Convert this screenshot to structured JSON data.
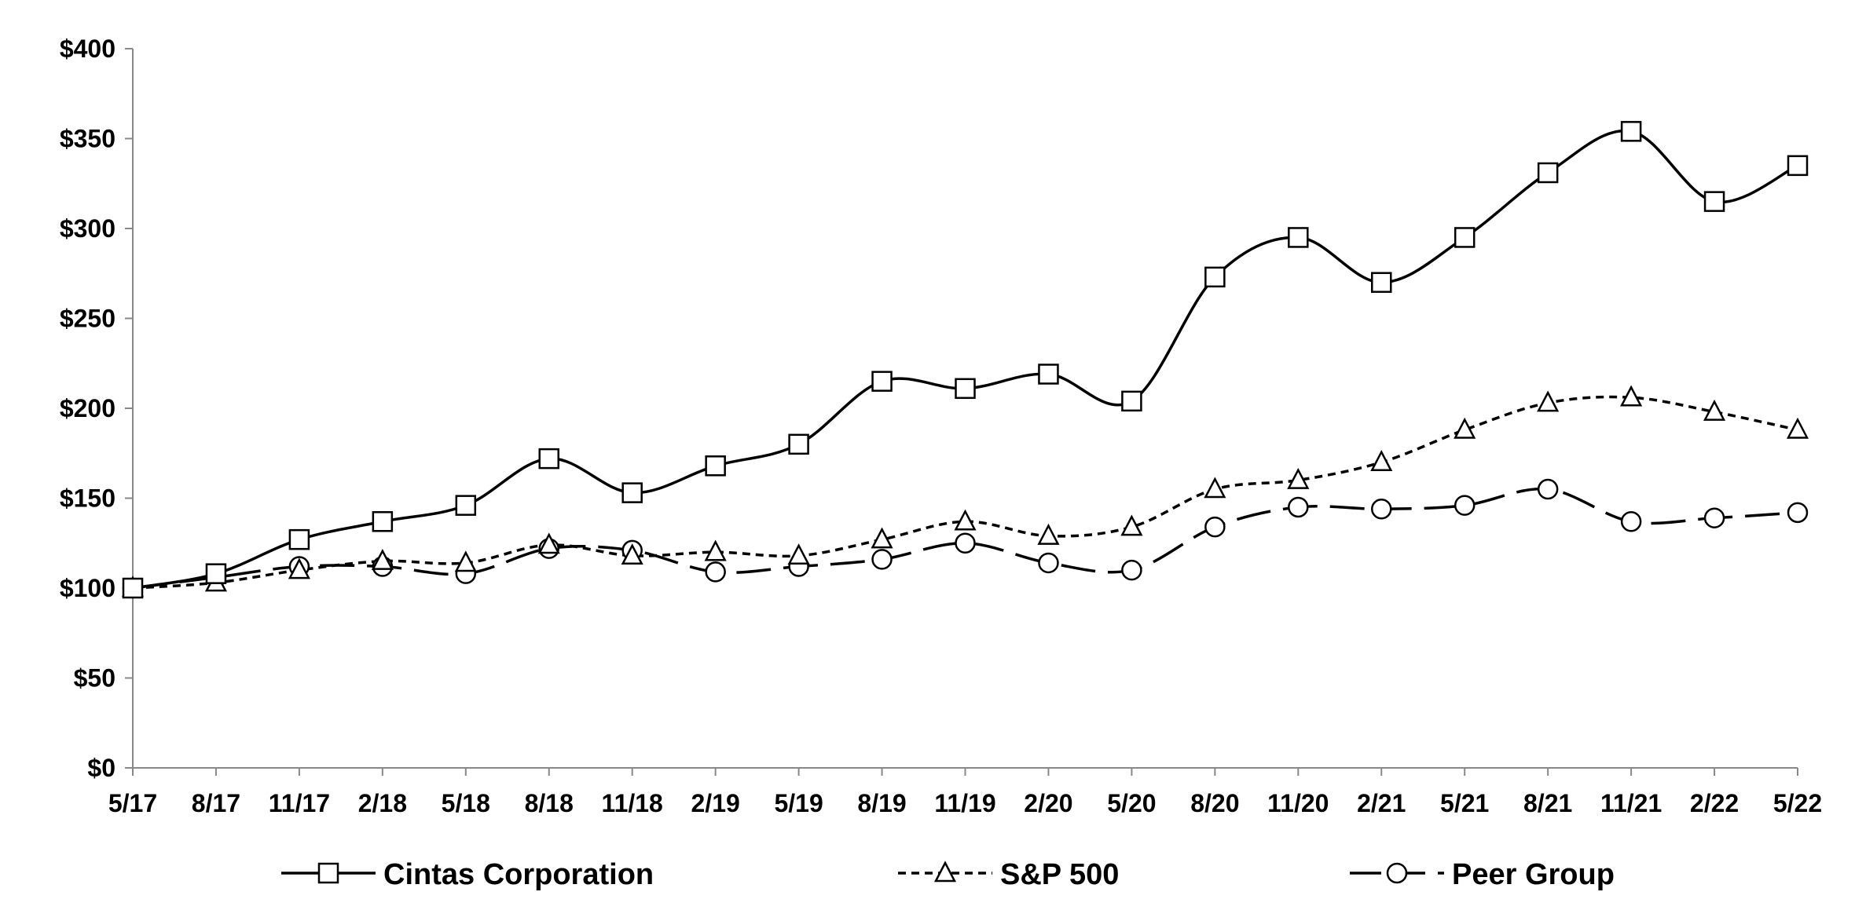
{
  "chart_data": {
    "type": "line",
    "categories": [
      "5/17",
      "8/17",
      "11/17",
      "2/18",
      "5/18",
      "8/18",
      "11/18",
      "2/19",
      "5/19",
      "8/19",
      "11/19",
      "2/20",
      "5/20",
      "8/20",
      "11/20",
      "2/21",
      "5/21",
      "8/21",
      "11/21",
      "2/22",
      "5/22"
    ],
    "y_ticks": [
      "$0",
      "$50",
      "$100",
      "$150",
      "$200",
      "$250",
      "$300",
      "$350",
      "$400"
    ],
    "ylim": [
      0,
      400
    ],
    "grid": false,
    "legend_position": "bottom",
    "series": [
      {
        "name": "Cintas Corporation",
        "marker": "square",
        "line_style": "solid",
        "color": "#000000",
        "values": [
          100,
          108,
          127,
          137,
          146,
          172,
          153,
          168,
          180,
          215,
          211,
          219,
          204,
          273,
          295,
          270,
          295,
          331,
          354,
          315,
          335
        ]
      },
      {
        "name": "S&P 500",
        "marker": "triangle",
        "line_style": "dotted",
        "color": "#000000",
        "values": [
          100,
          103,
          110,
          115,
          114,
          124,
          118,
          120,
          118,
          127,
          137,
          129,
          134,
          155,
          160,
          170,
          188,
          203,
          206,
          198,
          188
        ]
      },
      {
        "name": "Peer Group",
        "marker": "circle",
        "line_style": "dashed",
        "color": "#000000",
        "values": [
          100,
          106,
          112,
          112,
          108,
          122,
          121,
          109,
          112,
          116,
          125,
          114,
          110,
          134,
          145,
          144,
          146,
          155,
          137,
          139,
          142
        ]
      }
    ]
  }
}
